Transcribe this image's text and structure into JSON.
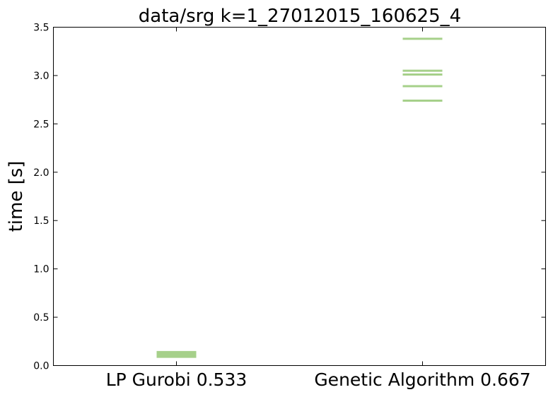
{
  "chart_data": {
    "type": "scatter",
    "title": "data/srg k=1_27012015_160625_4",
    "xlabel": "",
    "ylabel": "time [s]",
    "ylim": [
      0,
      3.5
    ],
    "yticks": [
      "0.0",
      "0.5",
      "1.0",
      "1.5",
      "2.0",
      "2.5",
      "3.0",
      "3.5"
    ],
    "categories": [
      "LP Gurobi 0.533",
      "Genetic Algorithm 0.667"
    ],
    "marker": "horizontal-line",
    "marker_color": "#a6d08a",
    "grid": false,
    "series": [
      {
        "category": "LP Gurobi 0.533",
        "values": [
          0.09,
          0.1,
          0.11,
          0.13,
          0.14
        ]
      },
      {
        "category": "Genetic Algorithm 0.667",
        "values": [
          2.74,
          2.89,
          3.01,
          3.05,
          3.38
        ]
      }
    ]
  }
}
